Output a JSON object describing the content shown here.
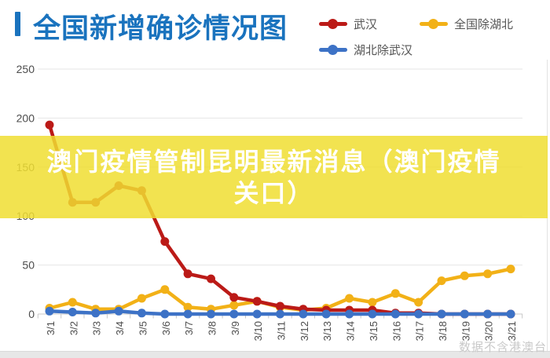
{
  "header": {
    "title": "全国新增确诊情况图"
  },
  "legend": [
    {
      "label": "武汉",
      "color": "#bb1a17",
      "key": "wuhan"
    },
    {
      "label": "全国除湖北",
      "color": "#f2b117",
      "key": "national-ex-hubei"
    },
    {
      "label": "湖北除武汉",
      "color": "#3d72c6",
      "key": "hubei-ex-wuhan"
    }
  ],
  "overlay": {
    "line1": "澳门疫情管制昆明最新消息（澳门疫情",
    "line2": "关口）",
    "band_color": "#f0de31",
    "text_color": "#ffffff"
  },
  "watermark": "数据不含港澳台",
  "colors": {
    "title_blue": "#1a73be",
    "grid": "#e4e4e4",
    "axis_line": "#c8c8c8",
    "axis_text": "#4c4c4c",
    "legend_text": "#555555"
  },
  "chart_data": {
    "type": "line",
    "title": "全国新增确诊情况图",
    "categories": [
      "3/1",
      "3/2",
      "3/3",
      "3/4",
      "3/5",
      "3/6",
      "3/7",
      "3/8",
      "3/9",
      "3/10",
      "3/11",
      "3/12",
      "3/13",
      "3/14",
      "3/15",
      "3/16",
      "3/17",
      "3/18",
      "3/19",
      "3/20",
      "3/21"
    ],
    "series": [
      {
        "name": "武汉",
        "color": "#bb1a17",
        "values": [
          193,
          114,
          114,
          131,
          126,
          74,
          41,
          36,
          17,
          13,
          8,
          5,
          4,
          4,
          4,
          1,
          1,
          0,
          0,
          0,
          0
        ]
      },
      {
        "name": "全国除湖北",
        "color": "#f2b117",
        "values": [
          6,
          12,
          5,
          5,
          16,
          25,
          7,
          5,
          9,
          13,
          7,
          4,
          6,
          16,
          12,
          21,
          12,
          34,
          39,
          41,
          46
        ]
      },
      {
        "name": "湖北除武汉",
        "color": "#3d72c6",
        "values": [
          3,
          2,
          1,
          3,
          1,
          0,
          0,
          0,
          0,
          0,
          0,
          0,
          0,
          0,
          0,
          0,
          0,
          0,
          0,
          0,
          0
        ]
      }
    ],
    "ylim": [
      0,
      250
    ],
    "yticks": [
      0,
      50,
      100,
      150,
      200,
      250
    ],
    "xlabel": "",
    "ylabel": "",
    "grid": true,
    "legend_position": "top-right"
  }
}
